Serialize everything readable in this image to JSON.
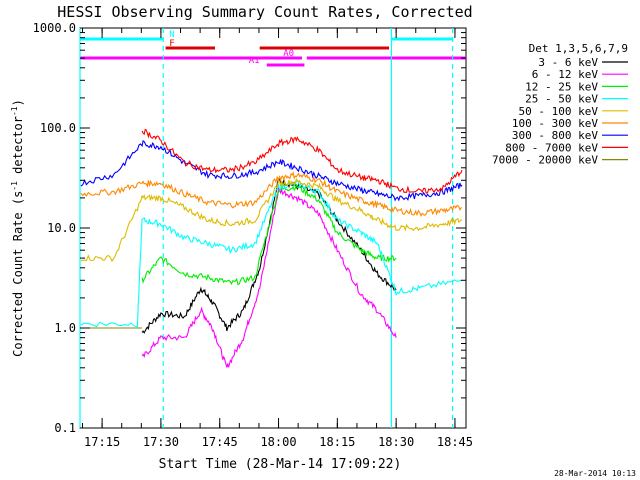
{
  "chart_data": {
    "type": "line",
    "title": "HESSI Observing Summary Count Rates, Corrected",
    "xlabel": "Start Time (28-Mar-14 17:09:22)",
    "ylabel_main": "Corrected Count Rate (s",
    "ylabel_sup1": "-1",
    "ylabel_mid": " detector",
    "ylabel_sup2": "-1",
    "ylabel_end": ")",
    "yscale": "log",
    "ylim": [
      0.1,
      1000
    ],
    "xlim": [
      17.156,
      18.797
    ],
    "yticks": [
      {
        "v": 1000,
        "label": "1000.0"
      },
      {
        "v": 100,
        "label": "100.0"
      },
      {
        "v": 10,
        "label": "10.0"
      },
      {
        "v": 1,
        "label": "1.0"
      },
      {
        "v": 0.1,
        "label": "0.1"
      }
    ],
    "xticks": [
      {
        "v": 17.25,
        "label": "17:15"
      },
      {
        "v": 17.5,
        "label": "17:30"
      },
      {
        "v": 17.75,
        "label": "17:45"
      },
      {
        "v": 18.0,
        "label": "18:00"
      },
      {
        "v": 18.25,
        "label": "18:15"
      },
      {
        "v": 18.5,
        "label": "18:30"
      },
      {
        "v": 18.75,
        "label": "18:45"
      }
    ],
    "legend_title": "Det 1,3,5,6,7,9",
    "series": [
      {
        "name": "3 - 6 keV",
        "color": "#000000",
        "x": [
          17.42,
          17.5,
          17.6,
          17.67,
          17.72,
          17.78,
          17.85,
          17.92,
          18.0,
          18.08,
          18.17,
          18.25,
          18.35,
          18.42,
          18.5
        ],
        "values": [
          0.9,
          1.4,
          1.3,
          2.5,
          1.8,
          1.0,
          1.5,
          4.0,
          30,
          26,
          22,
          12,
          6,
          3.5,
          2.4
        ]
      },
      {
        "name": "6 - 12 keV",
        "color": "#ff00ff",
        "x": [
          17.42,
          17.5,
          17.6,
          17.67,
          17.72,
          17.78,
          17.85,
          17.92,
          18.0,
          18.08,
          18.17,
          18.25,
          18.35,
          18.42,
          18.5
        ],
        "values": [
          0.5,
          0.8,
          0.8,
          1.5,
          1.0,
          0.4,
          0.8,
          2.5,
          24,
          20,
          14,
          6,
          2.2,
          1.5,
          0.8
        ]
      },
      {
        "name": "12 - 25 keV",
        "color": "#00ee00",
        "x": [
          17.42,
          17.5,
          17.6,
          17.7,
          17.8,
          17.9,
          18.0,
          18.08,
          18.17,
          18.25,
          18.35,
          18.42,
          18.5
        ],
        "values": [
          3,
          5,
          3.5,
          3.2,
          2.8,
          3.2,
          24,
          26,
          19,
          9,
          6,
          5,
          5
        ]
      },
      {
        "name": "25 - 50 keV",
        "color": "#00ffff",
        "x": [
          17.16,
          17.4,
          17.42,
          17.5,
          17.6,
          17.7,
          17.8,
          17.9,
          18.0,
          18.08,
          18.17,
          18.25,
          18.35,
          18.42,
          18.5,
          18.6,
          18.78
        ],
        "values": [
          1.1,
          1.1,
          12,
          11,
          8,
          7,
          6,
          7,
          26,
          28,
          23,
          12,
          9,
          7,
          2.3,
          2.5,
          3
        ]
      },
      {
        "name": "50 - 100 keV",
        "color": "#ddbb00",
        "x": [
          17.16,
          17.3,
          17.42,
          17.5,
          17.6,
          17.7,
          17.8,
          17.9,
          18.0,
          18.08,
          18.17,
          18.25,
          18.35,
          18.42,
          18.5,
          18.6,
          18.7,
          18.78
        ],
        "values": [
          5,
          5,
          20,
          20,
          16,
          12,
          11,
          12,
          28,
          29,
          26,
          19,
          15,
          12,
          10,
          10,
          11,
          12
        ]
      },
      {
        "name": "100 - 300 keV",
        "color": "#ff8800",
        "x": [
          17.16,
          17.3,
          17.42,
          17.5,
          17.6,
          17.7,
          17.8,
          17.9,
          18.0,
          18.08,
          18.17,
          18.25,
          18.35,
          18.42,
          18.5,
          18.6,
          18.7,
          18.78
        ],
        "values": [
          22,
          23,
          28,
          28,
          22,
          18,
          17,
          18,
          32,
          34,
          30,
          23,
          19,
          17,
          15,
          14,
          15,
          16
        ]
      },
      {
        "name": "300 - 800 keV",
        "color": "#0000ff",
        "x": [
          17.16,
          17.3,
          17.42,
          17.5,
          17.6,
          17.7,
          17.8,
          17.9,
          18.0,
          18.08,
          18.17,
          18.25,
          18.35,
          18.42,
          18.5,
          18.6,
          18.7,
          18.78
        ],
        "values": [
          28,
          34,
          70,
          65,
          45,
          34,
          33,
          36,
          46,
          40,
          33,
          28,
          24,
          22,
          20,
          21,
          23,
          27
        ]
      },
      {
        "name": "800 - 7000 keV",
        "color": "#ff0000",
        "x": [
          17.42,
          17.5,
          17.6,
          17.7,
          17.8,
          17.9,
          18.0,
          18.08,
          18.17,
          18.25,
          18.35,
          18.42,
          18.5,
          18.6,
          18.7,
          18.78
        ],
        "values": [
          95,
          75,
          45,
          38,
          38,
          45,
          70,
          78,
          60,
          38,
          32,
          30,
          25,
          23,
          25,
          38
        ]
      },
      {
        "name": "7000 - 20000 keV",
        "color": "#888800",
        "x": [
          17.16,
          17.42
        ],
        "values": [
          1.0,
          1.0
        ]
      }
    ],
    "flags": [
      {
        "label": "N",
        "color": "#00ffff",
        "y": 39,
        "segments": [
          [
            17.156,
            17.51
          ],
          [
            18.48,
            18.74
          ]
        ]
      },
      {
        "label": "F",
        "color": "#dd0000",
        "y": 48,
        "segments": [
          [
            17.52,
            17.73
          ],
          [
            17.92,
            18.47
          ]
        ]
      },
      {
        "label": "A0",
        "color": "#ff00ff",
        "y": 58,
        "segments": [
          [
            17.156,
            18.1
          ],
          [
            18.12,
            18.797
          ]
        ]
      },
      {
        "label": "A1",
        "color": "#ff00ff",
        "y": 65,
        "segments": [
          [
            17.95,
            18.11
          ]
        ]
      }
    ],
    "vlines": [
      {
        "x": 17.156,
        "color": "#00ffff",
        "dash": false
      },
      {
        "x": 17.51,
        "color": "#00ffff",
        "dash": true
      },
      {
        "x": 18.48,
        "color": "#00ffff",
        "dash": false
      },
      {
        "x": 18.74,
        "color": "#00ffff",
        "dash": true
      }
    ],
    "legend_placement": "right",
    "grid": false
  },
  "footer": {
    "timestamp": "28-Mar-2014 10:13"
  }
}
